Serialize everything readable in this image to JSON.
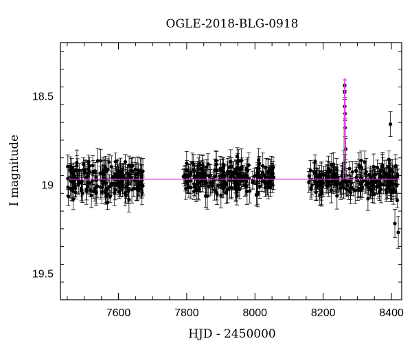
{
  "chart_data": {
    "type": "scatter",
    "title": "OGLE-2018-BLG-0918",
    "xlabel": "HJD - 2450000",
    "ylabel": "I magnitude",
    "xlim": [
      7430,
      8430
    ],
    "ylim": [
      19.65,
      18.2
    ],
    "y_inverted": true,
    "x_ticks": [
      7600,
      7800,
      8000,
      8200,
      8400
    ],
    "y_ticks": [
      18.5,
      19,
      19.5
    ],
    "y_tick_labels": [
      "18.5",
      "19",
      "19.5"
    ],
    "grid": false,
    "point_color": "#000000",
    "model_color": "#e040e0",
    "model_series": {
      "baseline": 18.97,
      "peak_time": 8263,
      "peak_magnitude": 18.4
    },
    "segments": [
      {
        "start": 7448,
        "end": 7675,
        "center": 18.97,
        "spread": 0.09
      },
      {
        "start": 7790,
        "end": 8055,
        "center": 18.97,
        "spread": 0.09
      },
      {
        "start": 8158,
        "end": 8420,
        "center": 18.98,
        "spread": 0.09
      }
    ],
    "highlighted_points": [
      {
        "x": 8263,
        "y": 18.44,
        "err": 0.03
      },
      {
        "x": 8263,
        "y": 18.48,
        "err": 0.03
      },
      {
        "x": 8263,
        "y": 18.56,
        "err": 0.04
      },
      {
        "x": 8264,
        "y": 18.6,
        "err": 0.04
      },
      {
        "x": 8264,
        "y": 18.68,
        "err": 0.05
      },
      {
        "x": 8266,
        "y": 18.8,
        "err": 0.06
      },
      {
        "x": 8260,
        "y": 18.88,
        "err": 0.07
      },
      {
        "x": 8397,
        "y": 18.66,
        "err": 0.07
      },
      {
        "x": 8410,
        "y": 19.22,
        "err": 0.08
      },
      {
        "x": 8420,
        "y": 19.27,
        "err": 0.09
      }
    ]
  }
}
